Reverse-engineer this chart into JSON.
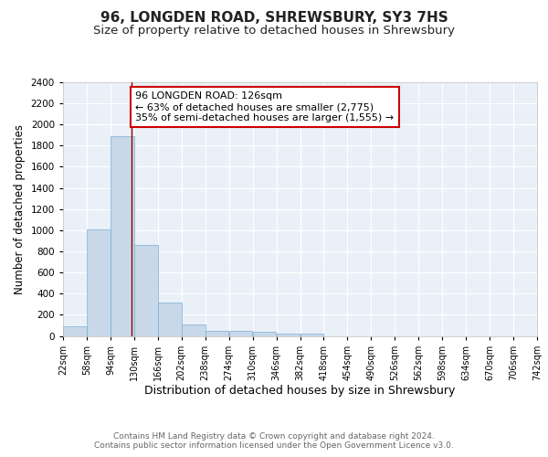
{
  "title": "96, LONGDEN ROAD, SHREWSBURY, SY3 7HS",
  "subtitle": "Size of property relative to detached houses in Shrewsbury",
  "xlabel": "Distribution of detached houses by size in Shrewsbury",
  "ylabel": "Number of detached properties",
  "bar_bins": [
    22,
    58,
    94,
    130,
    166,
    202,
    238,
    274,
    310,
    346,
    382,
    418,
    454,
    490,
    526,
    562,
    598,
    634,
    670,
    706,
    742
  ],
  "bar_heights": [
    90,
    1010,
    1890,
    860,
    320,
    110,
    50,
    45,
    35,
    20,
    20,
    0,
    0,
    0,
    0,
    0,
    0,
    0,
    0,
    0
  ],
  "bar_color": "#c8d8e8",
  "bar_edgecolor": "#7bafd4",
  "property_line_x": 126,
  "property_line_color": "#8b0000",
  "annotation_text": "96 LONGDEN ROAD: 126sqm\n← 63% of detached houses are smaller (2,775)\n35% of semi-detached houses are larger (1,555) →",
  "annotation_box_color": "#ffffff",
  "annotation_box_edgecolor": "#cc0000",
  "ylim": [
    0,
    2400
  ],
  "yticks": [
    0,
    200,
    400,
    600,
    800,
    1000,
    1200,
    1400,
    1600,
    1800,
    2000,
    2200,
    2400
  ],
  "tick_labels": [
    "22sqm",
    "58sqm",
    "94sqm",
    "130sqm",
    "166sqm",
    "202sqm",
    "238sqm",
    "274sqm",
    "310sqm",
    "346sqm",
    "382sqm",
    "418sqm",
    "454sqm",
    "490sqm",
    "526sqm",
    "562sqm",
    "598sqm",
    "634sqm",
    "670sqm",
    "706sqm",
    "742sqm"
  ],
  "background_color": "#eaf0f8",
  "footer_text": "Contains HM Land Registry data © Crown copyright and database right 2024.\nContains public sector information licensed under the Open Government Licence v3.0.",
  "title_fontsize": 11,
  "subtitle_fontsize": 9.5,
  "xlabel_fontsize": 9,
  "ylabel_fontsize": 8.5,
  "annotation_fontsize": 8,
  "footer_fontsize": 6.5
}
